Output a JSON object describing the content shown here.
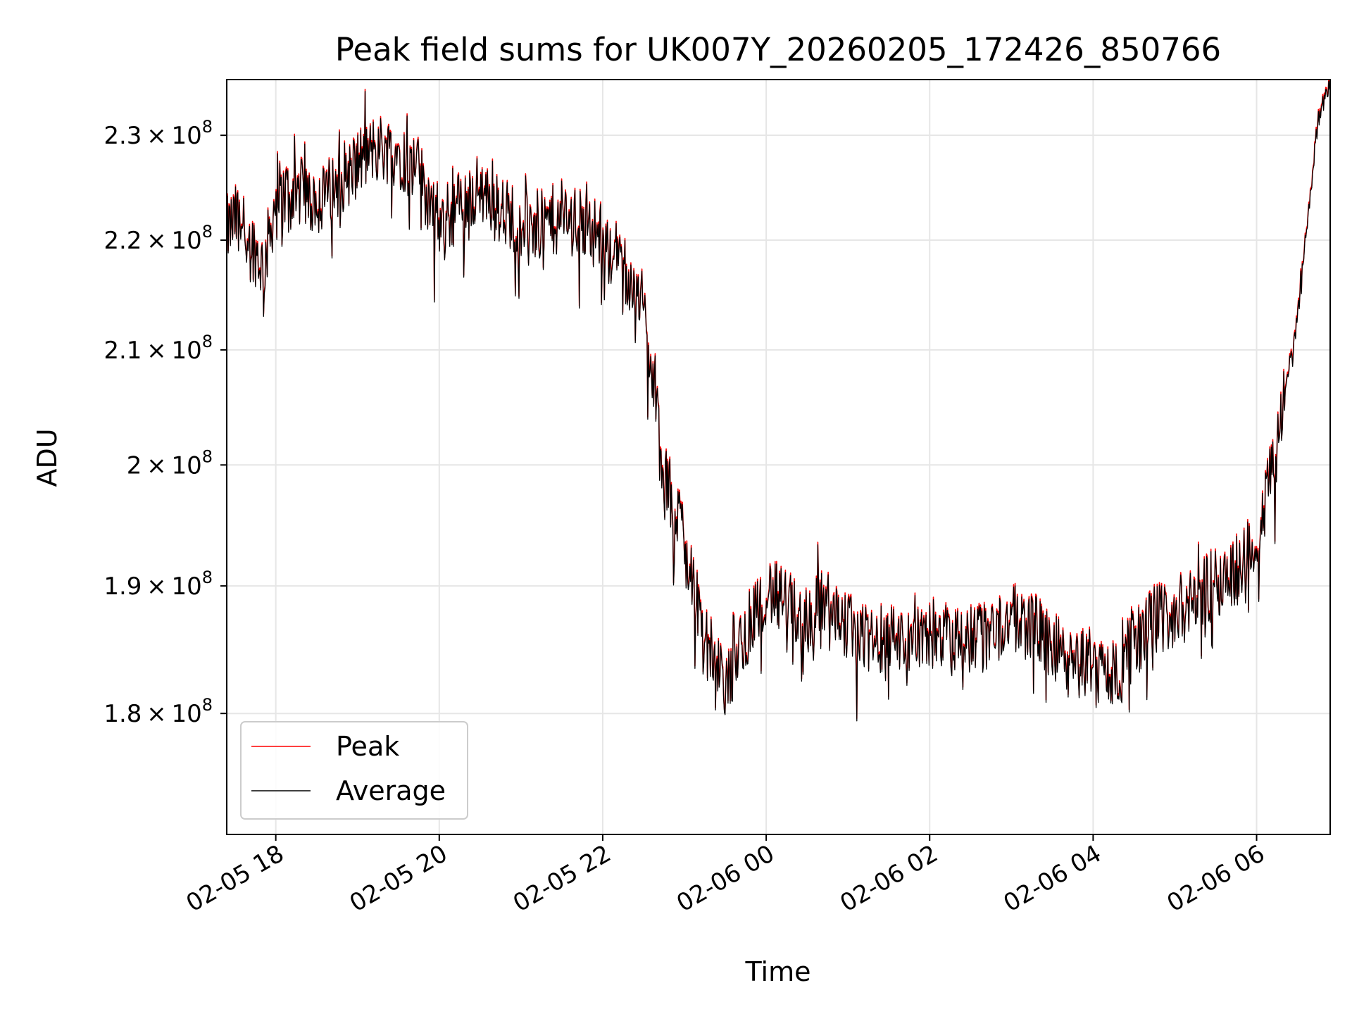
{
  "chart_data": {
    "type": "line",
    "title": "Peak field sums for UK007Y_20260205_172426_850766",
    "xlabel": "Time",
    "ylabel": "ADU",
    "y_scale": "log",
    "xlim": [
      "2026-02-05 17:24",
      "2026-02-06 06:54"
    ],
    "ylim": [
      171000000,
      235500000
    ],
    "x_ticks": [
      "02-05 18",
      "02-05 20",
      "02-05 22",
      "02-06 00",
      "02-06 02",
      "02-06 04",
      "02-06 06"
    ],
    "y_ticks": [
      {
        "mantissa": "2.3",
        "exponent": "8",
        "value": 230000000
      },
      {
        "mantissa": "2.2",
        "exponent": "8",
        "value": 220000000
      },
      {
        "mantissa": "2.1",
        "exponent": "8",
        "value": 210000000
      },
      {
        "mantissa": "2",
        "exponent": "8",
        "value": 200000000
      },
      {
        "mantissa": "1.9",
        "exponent": "8",
        "value": 190000000
      },
      {
        "mantissa": "1.8",
        "exponent": "8",
        "value": 180000000
      }
    ],
    "grid": true,
    "legend": "lower-left",
    "series": [
      {
        "name": "Peak",
        "color": "#ff0000",
        "points": [
          [
            "2026-02-05 17:24",
            221000000
          ],
          [
            "2026-02-05 17:33",
            222500000
          ],
          [
            "2026-02-05 17:42",
            220000000
          ],
          [
            "2026-02-05 17:51",
            217500000
          ],
          [
            "2026-02-05 18:00",
            224000000
          ],
          [
            "2026-02-05 18:15",
            225000000
          ],
          [
            "2026-02-05 18:30",
            223500000
          ],
          [
            "2026-02-05 18:45",
            225500000
          ],
          [
            "2026-02-05 19:00",
            227500000
          ],
          [
            "2026-02-05 19:15",
            229000000
          ],
          [
            "2026-02-05 19:30",
            228500000
          ],
          [
            "2026-02-05 19:45",
            226500000
          ],
          [
            "2026-02-05 20:00",
            221500000
          ],
          [
            "2026-02-05 20:15",
            223500000
          ],
          [
            "2026-02-05 20:30",
            225000000
          ],
          [
            "2026-02-05 20:45",
            223000000
          ],
          [
            "2026-02-05 21:00",
            222000000
          ],
          [
            "2026-02-05 21:15",
            221500000
          ],
          [
            "2026-02-05 21:30",
            222500000
          ],
          [
            "2026-02-05 21:45",
            221500000
          ],
          [
            "2026-02-05 22:00",
            220500000
          ],
          [
            "2026-02-05 22:15",
            218000000
          ],
          [
            "2026-02-05 22:30",
            214000000
          ],
          [
            "2026-02-05 22:45",
            199000000
          ],
          [
            "2026-02-05 23:00",
            194500000
          ],
          [
            "2026-02-05 23:15",
            186000000
          ],
          [
            "2026-02-05 23:30",
            182000000
          ],
          [
            "2026-02-05 23:45",
            186500000
          ],
          [
            "2026-02-06 00:00",
            190000000
          ],
          [
            "2026-02-06 00:15",
            188500000
          ],
          [
            "2026-02-06 00:30",
            187500000
          ],
          [
            "2026-02-06 00:45",
            189000000
          ],
          [
            "2026-02-06 01:00",
            187000000
          ],
          [
            "2026-02-06 01:15",
            185500000
          ],
          [
            "2026-02-06 01:30",
            186500000
          ],
          [
            "2026-02-06 01:45",
            185500000
          ],
          [
            "2026-02-06 02:00",
            186500000
          ],
          [
            "2026-02-06 02:15",
            185500000
          ],
          [
            "2026-02-06 02:30",
            186000000
          ],
          [
            "2026-02-06 02:45",
            186500000
          ],
          [
            "2026-02-06 03:00",
            187500000
          ],
          [
            "2026-02-06 03:15",
            187000000
          ],
          [
            "2026-02-06 03:30",
            185500000
          ],
          [
            "2026-02-06 03:45",
            183500000
          ],
          [
            "2026-02-06 04:00",
            184500000
          ],
          [
            "2026-02-06 04:15",
            183000000
          ],
          [
            "2026-02-06 04:30",
            185500000
          ],
          [
            "2026-02-06 04:45",
            187500000
          ],
          [
            "2026-02-06 05:00",
            188000000
          ],
          [
            "2026-02-06 05:15",
            189000000
          ],
          [
            "2026-02-06 05:30",
            190500000
          ],
          [
            "2026-02-06 05:45",
            191500000
          ],
          [
            "2026-02-06 06:00",
            193500000
          ],
          [
            "2026-02-06 06:15",
            202000000
          ],
          [
            "2026-02-06 06:30",
            213000000
          ],
          [
            "2026-02-06 06:45",
            231500000
          ],
          [
            "2026-02-06 06:54",
            235500000
          ]
        ]
      },
      {
        "name": "Average",
        "color": "#000000",
        "points": [
          [
            "2026-02-05 17:24",
            220800000
          ],
          [
            "2026-02-05 17:33",
            222300000
          ],
          [
            "2026-02-05 17:42",
            219800000
          ],
          [
            "2026-02-05 17:51",
            217300000
          ],
          [
            "2026-02-05 18:00",
            223800000
          ],
          [
            "2026-02-05 18:15",
            224800000
          ],
          [
            "2026-02-05 18:30",
            223300000
          ],
          [
            "2026-02-05 18:45",
            225300000
          ],
          [
            "2026-02-05 19:00",
            227300000
          ],
          [
            "2026-02-05 19:15",
            228800000
          ],
          [
            "2026-02-05 19:30",
            228300000
          ],
          [
            "2026-02-05 19:45",
            226300000
          ],
          [
            "2026-02-05 20:00",
            221300000
          ],
          [
            "2026-02-05 20:15",
            223300000
          ],
          [
            "2026-02-05 20:30",
            224800000
          ],
          [
            "2026-02-05 20:45",
            222800000
          ],
          [
            "2026-02-05 21:00",
            221800000
          ],
          [
            "2026-02-05 21:15",
            221300000
          ],
          [
            "2026-02-05 21:30",
            222300000
          ],
          [
            "2026-02-05 21:45",
            221300000
          ],
          [
            "2026-02-05 22:00",
            220300000
          ],
          [
            "2026-02-05 22:15",
            217800000
          ],
          [
            "2026-02-05 22:30",
            213800000
          ],
          [
            "2026-02-05 22:45",
            198800000
          ],
          [
            "2026-02-05 23:00",
            194300000
          ],
          [
            "2026-02-05 23:15",
            185800000
          ],
          [
            "2026-02-05 23:30",
            181800000
          ],
          [
            "2026-02-05 23:45",
            186300000
          ],
          [
            "2026-02-06 00:00",
            189800000
          ],
          [
            "2026-02-06 00:15",
            188300000
          ],
          [
            "2026-02-06 00:30",
            187300000
          ],
          [
            "2026-02-06 00:45",
            188800000
          ],
          [
            "2026-02-06 01:00",
            186800000
          ],
          [
            "2026-02-06 01:15",
            185300000
          ],
          [
            "2026-02-06 01:30",
            186300000
          ],
          [
            "2026-02-06 01:45",
            185300000
          ],
          [
            "2026-02-06 02:00",
            186300000
          ],
          [
            "2026-02-06 02:15",
            185300000
          ],
          [
            "2026-02-06 02:30",
            185800000
          ],
          [
            "2026-02-06 02:45",
            186300000
          ],
          [
            "2026-02-06 03:00",
            187300000
          ],
          [
            "2026-02-06 03:15",
            186800000
          ],
          [
            "2026-02-06 03:30",
            185300000
          ],
          [
            "2026-02-06 03:45",
            183300000
          ],
          [
            "2026-02-06 04:00",
            184300000
          ],
          [
            "2026-02-06 04:15",
            182800000
          ],
          [
            "2026-02-06 04:30",
            185300000
          ],
          [
            "2026-02-06 04:45",
            187300000
          ],
          [
            "2026-02-06 05:00",
            187800000
          ],
          [
            "2026-02-06 05:15",
            188800000
          ],
          [
            "2026-02-06 05:30",
            190300000
          ],
          [
            "2026-02-06 05:45",
            191300000
          ],
          [
            "2026-02-06 06:00",
            193300000
          ],
          [
            "2026-02-06 06:15",
            201800000
          ],
          [
            "2026-02-06 06:30",
            212800000
          ],
          [
            "2026-02-06 06:45",
            231300000
          ],
          [
            "2026-02-06 06:54",
            235300000
          ]
        ]
      }
    ]
  }
}
